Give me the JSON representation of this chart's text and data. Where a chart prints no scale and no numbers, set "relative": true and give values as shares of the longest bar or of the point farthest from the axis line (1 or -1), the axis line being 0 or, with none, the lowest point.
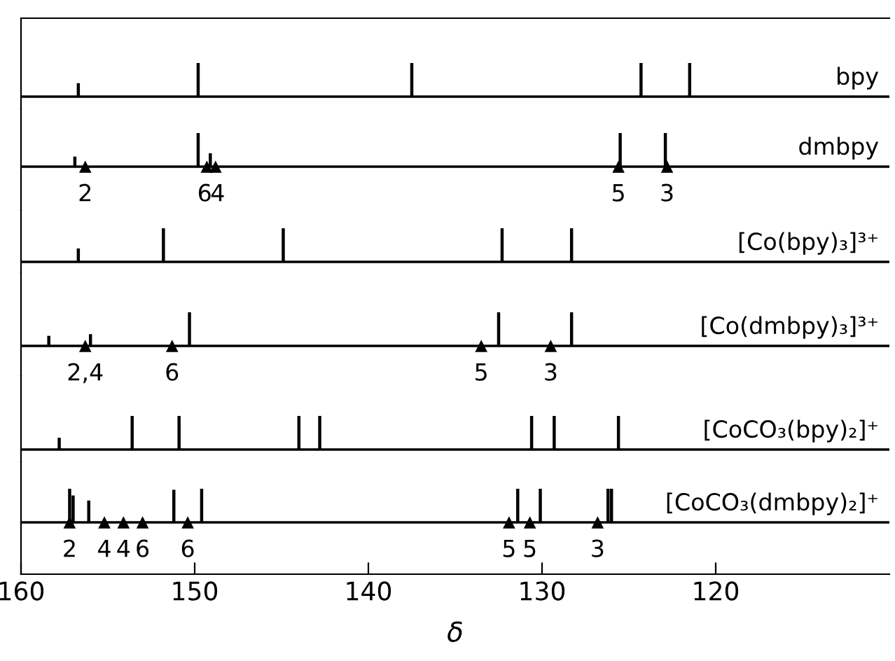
{
  "chart_data": [
    {
      "type": "bar",
      "relative": true,
      "xlim": [
        160,
        110
      ],
      "tick_labels": false,
      "series": [
        {
          "name": "bpy",
          "color": "#000000",
          "x": [
            156.7,
            149.8,
            137.5,
            124.3,
            121.5
          ],
          "values": [
            0.4,
            1,
            1,
            1,
            1
          ]
        }
      ]
    },
    {
      "type": "bar",
      "relative": true,
      "xlim": [
        160,
        110
      ],
      "tick_labels": false,
      "series": [
        {
          "name": "dmbpy",
          "color": "#000000",
          "x": [
            156.9,
            149.8,
            149.1,
            125.5,
            122.9
          ],
          "values": [
            0.3,
            1,
            0.4,
            1,
            1
          ]
        },
        {
          "type": "scatter",
          "marker": "triangle",
          "color": "#000000",
          "x": [
            156.3,
            149.3,
            148.8,
            125.6,
            122.8
          ],
          "values": [
            0,
            0,
            0,
            0,
            0
          ]
        }
      ],
      "annotations": [
        "2",
        "6",
        "4",
        "5",
        "3"
      ]
    },
    {
      "type": "bar",
      "relative": true,
      "xlim": [
        160,
        110
      ],
      "tick_labels": false,
      "series": [
        {
          "name": "[Co(bpy)₃]³⁺",
          "color": "#000000",
          "x": [
            156.7,
            151.8,
            144.9,
            132.3,
            128.3
          ],
          "values": [
            0.4,
            1,
            1,
            1,
            1
          ]
        }
      ]
    },
    {
      "type": "bar",
      "relative": true,
      "xlim": [
        160,
        110
      ],
      "tick_labels": false,
      "series": [
        {
          "name": "[Co(dmbpy)₃]³⁺",
          "color": "#000000",
          "x": [
            158.4,
            156.0,
            150.3,
            132.5,
            128.3
          ],
          "values": [
            0.3,
            0.35,
            1,
            1,
            1
          ]
        },
        {
          "type": "scatter",
          "marker": "triangle",
          "color": "#000000",
          "x": [
            156.3,
            151.3,
            133.5,
            129.5
          ],
          "values": [
            0,
            0,
            0,
            0
          ]
        }
      ],
      "annotations": [
        "2,4",
        "6",
        "5",
        "3"
      ]
    },
    {
      "type": "bar",
      "relative": true,
      "xlim": [
        160,
        110
      ],
      "tick_labels": false,
      "series": [
        {
          "name": "[CoCO₃(bpy)₂]⁺",
          "color": "#000000",
          "x": [
            157.8,
            153.6,
            150.9,
            144.0,
            142.8,
            130.6,
            129.3,
            125.6
          ],
          "values": [
            0.35,
            1,
            1,
            1,
            1,
            1,
            1,
            1
          ]
        }
      ]
    },
    {
      "type": "bar",
      "relative": true,
      "xlim": [
        160,
        110
      ],
      "xticks": [
        160,
        150,
        140,
        130,
        120
      ],
      "tick_labels": "x",
      "xlabel": "δ",
      "series": [
        {
          "name": "[CoCO₃(dmbpy)₂]⁺",
          "color": "#000000",
          "x": [
            157.2,
            157.0,
            156.1,
            151.2,
            149.6,
            131.4,
            130.1,
            126.2,
            126.0
          ],
          "values": [
            1,
            0.8,
            0.65,
            0.97,
            1,
            1,
            1,
            1,
            1
          ]
        },
        {
          "type": "scatter",
          "marker": "triangle",
          "color": "#000000",
          "x": [
            157.2,
            155.2,
            154.1,
            153.0,
            150.4,
            131.9,
            130.7,
            126.8
          ],
          "values": [
            0,
            0,
            0,
            0,
            0,
            0,
            0,
            0
          ]
        }
      ],
      "annotations": [
        "2",
        "4",
        "4",
        "6",
        "6",
        "5",
        "5",
        "3"
      ]
    }
  ]
}
